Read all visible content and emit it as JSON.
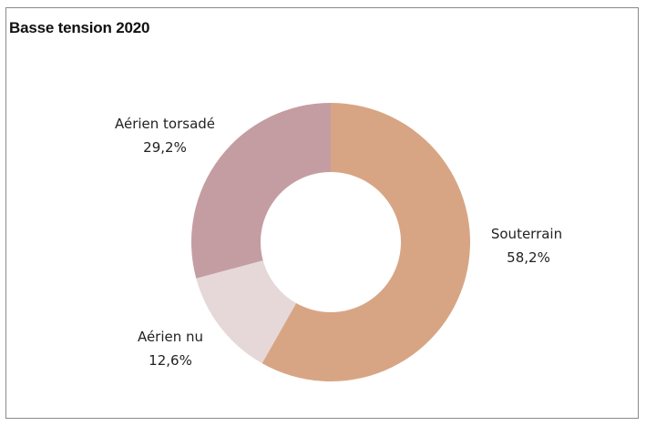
{
  "title": "Basse tension 2020",
  "chart_data": {
    "type": "pie",
    "donut": true,
    "title": "Basse tension 2020",
    "slices": [
      {
        "name": "Souterrain",
        "value": 58.2,
        "label": "58,2%",
        "color": "#d8a584"
      },
      {
        "name": "Aérien nu",
        "value": 12.6,
        "label": "12,6%",
        "color": "#e6d8d8"
      },
      {
        "name": "Aérien torsadé",
        "value": 29.2,
        "label": "29,2%",
        "color": "#c49da2"
      }
    ],
    "legend": "none"
  }
}
